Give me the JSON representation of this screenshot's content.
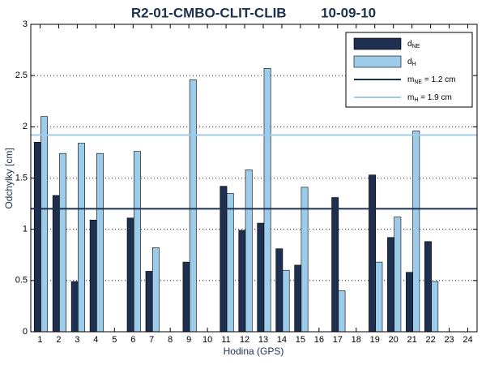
{
  "chart_data": {
    "type": "bar",
    "title": "R2-01-CMBO-CLIT-CLIB         10-09-10",
    "x_label": "Hodina (GPS)",
    "y_label": "Odchylky [cm]",
    "categories": [
      "1",
      "2",
      "3",
      "4",
      "5",
      "6",
      "7",
      "8",
      "9",
      "10",
      "11",
      "12",
      "13",
      "14",
      "15",
      "16",
      "17",
      "18",
      "19",
      "20",
      "21",
      "22",
      "23",
      "24"
    ],
    "series": [
      {
        "name": "d",
        "subscript": "NE",
        "color": "#1f2f50",
        "values": [
          1.85,
          1.33,
          0.49,
          1.09,
          null,
          1.11,
          0.59,
          null,
          0.68,
          null,
          1.42,
          0.99,
          1.06,
          0.81,
          0.65,
          null,
          1.31,
          null,
          1.53,
          0.92,
          0.58,
          0.88,
          null,
          null
        ]
      },
      {
        "name": "d",
        "subscript": "H",
        "color": "#9dcbea",
        "values": [
          2.1,
          1.74,
          1.84,
          1.74,
          null,
          1.76,
          0.82,
          null,
          2.46,
          null,
          1.35,
          1.58,
          2.57,
          0.6,
          1.41,
          null,
          0.4,
          null,
          0.68,
          1.12,
          1.96,
          0.49,
          null,
          null
        ]
      }
    ],
    "reference_lines": [
      {
        "name": "m",
        "subscript": "NE",
        "label": " = 1.2 cm",
        "value": 1.2,
        "color": "#1c3050"
      },
      {
        "name": "m",
        "subscript": "H",
        "label": " = 1.9 cm",
        "value": 1.92,
        "color": "#9dcbea"
      }
    ],
    "ylim": [
      0,
      3
    ],
    "yticks": [
      0,
      0.5,
      1,
      1.5,
      2,
      2.5,
      3
    ],
    "grid": true,
    "legend": "upper right"
  }
}
